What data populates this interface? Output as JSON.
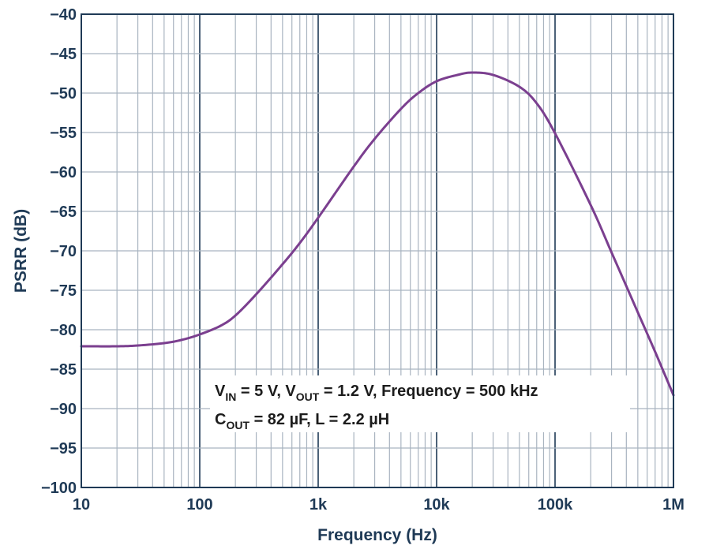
{
  "chart_data": {
    "type": "line",
    "title": "",
    "xlabel": "Frequency (Hz)",
    "ylabel": "PSRR (dB)",
    "xscale": "log",
    "xlim": [
      10,
      1000000
    ],
    "ylim": [
      -100,
      -40
    ],
    "grid": true,
    "x_tick_labels": [
      "10",
      "100",
      "1k",
      "10k",
      "100k",
      "1M"
    ],
    "y_tick_labels": [
      "−40",
      "−45",
      "−50",
      "−55",
      "−60",
      "−65",
      "−70",
      "−75",
      "−80",
      "−85",
      "−90",
      "−95",
      "−100"
    ],
    "colors": {
      "line": "#7b3f8f",
      "grid_minor": "#a9b4c0",
      "grid_major": "#1f3a56",
      "text": "#1f3a56"
    },
    "annotation": {
      "line1": {
        "v": "V",
        "v_sub": "IN",
        "mid": " = 5 V, V",
        "vout_sub": "OUT",
        "rest": " = 1.2 V, Frequency = 500 kHz"
      },
      "line2": {
        "c": "C",
        "c_sub": "OUT",
        "rest": " = 82 µF, L = 2.2 µH"
      }
    },
    "series": [
      {
        "name": "PSRR",
        "x": [
          10,
          20,
          30,
          50,
          70,
          100,
          150,
          200,
          300,
          500,
          700,
          1000,
          2000,
          3000,
          5000,
          7000,
          10000,
          15000,
          20000,
          30000,
          50000,
          70000,
          100000,
          200000,
          300000,
          500000,
          700000,
          1000000
        ],
        "y": [
          -82.1,
          -82.1,
          -82.0,
          -81.7,
          -81.3,
          -80.6,
          -79.5,
          -78.2,
          -75.5,
          -71.7,
          -69.0,
          -65.8,
          -59.3,
          -55.8,
          -52.0,
          -50.0,
          -48.5,
          -47.7,
          -47.4,
          -47.7,
          -49.2,
          -51.3,
          -55.1,
          -64.2,
          -70.2,
          -77.8,
          -82.8,
          -88.3
        ]
      }
    ]
  }
}
